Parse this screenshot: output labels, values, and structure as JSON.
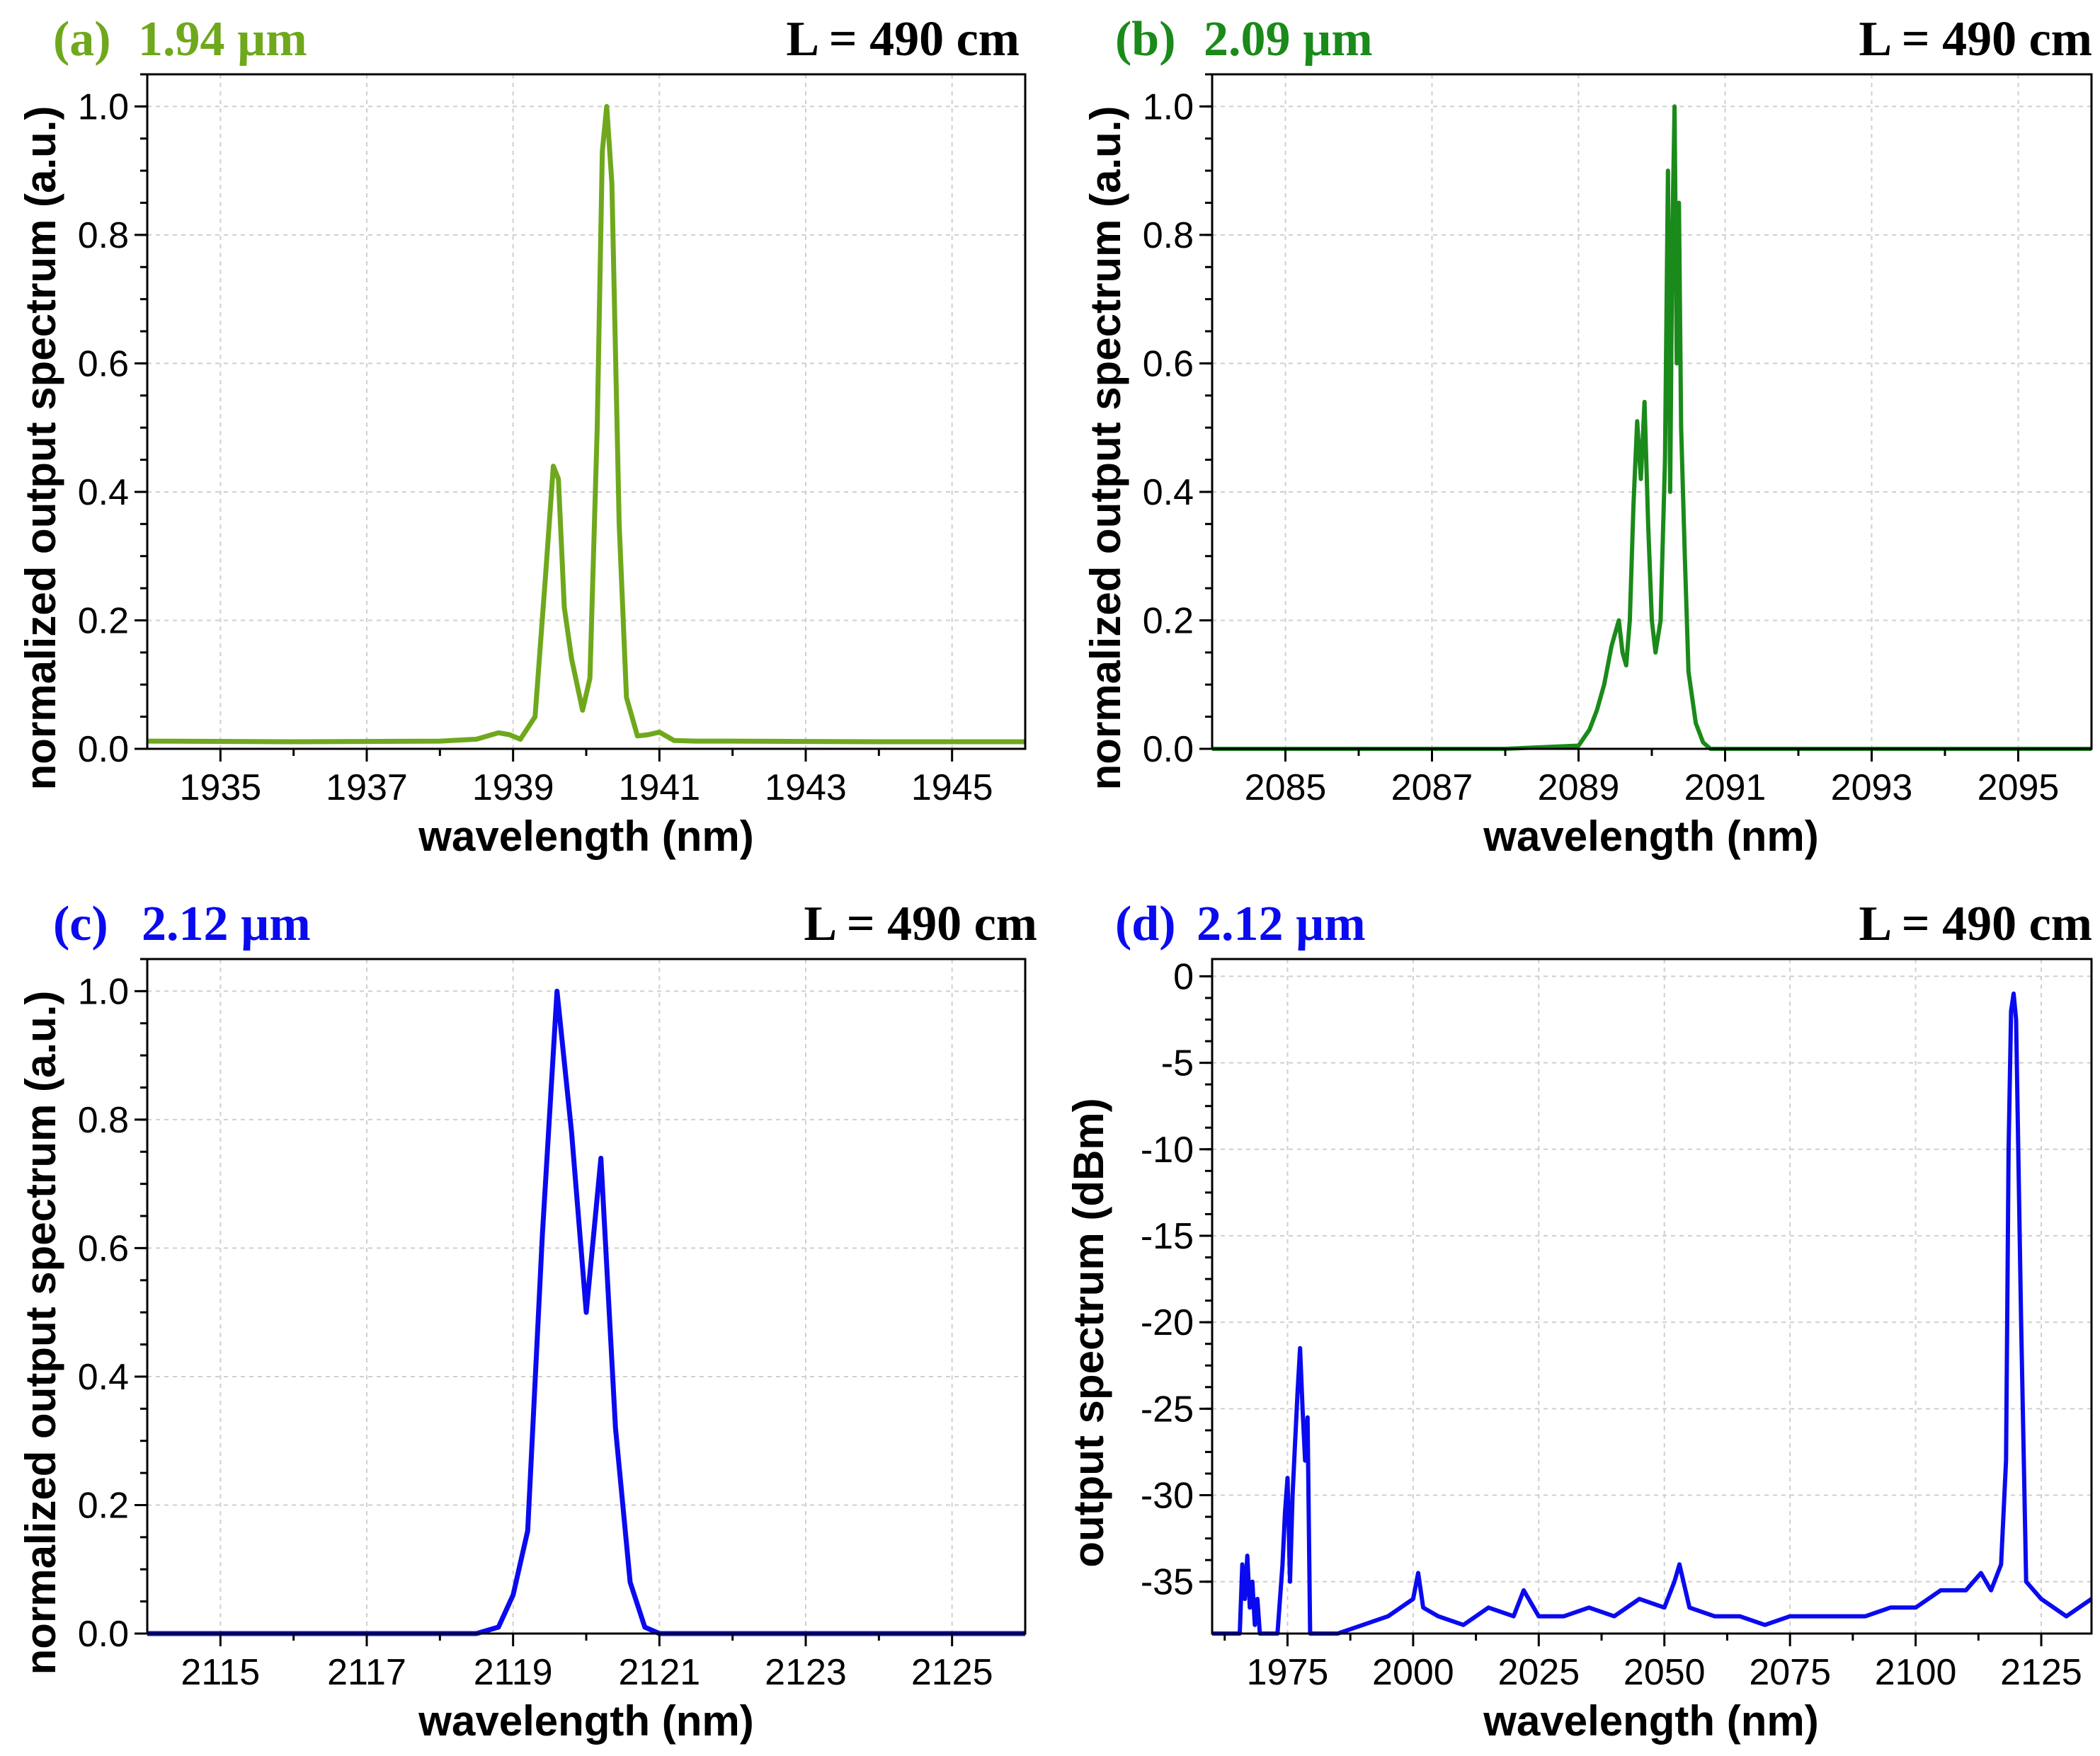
{
  "chart_data": [
    {
      "type": "line",
      "panel": "(a)",
      "title": "1.94 µm",
      "title_color": "#6fa81d",
      "length_label": "L = 490 cm",
      "xlabel": "wavelength (nm)",
      "ylabel": "normalized output spectrum (a.u.)",
      "xlim": [
        1934,
        1946
      ],
      "ylim": [
        0,
        1.05
      ],
      "xticks": [
        1935,
        1937,
        1939,
        1941,
        1943,
        1945
      ],
      "yticks": [
        0.0,
        0.2,
        0.4,
        0.6,
        0.8,
        1.0
      ],
      "ytick_labels": [
        "0.0",
        "0.2",
        "0.4",
        "0.6",
        "0.8",
        "1.0"
      ],
      "grid": true,
      "series": [
        {
          "name": "spectrum",
          "color": "#6fa81d",
          "x": [
            1934,
            1936,
            1938,
            1938.5,
            1938.8,
            1938.95,
            1939.1,
            1939.3,
            1939.45,
            1939.55,
            1939.62,
            1939.7,
            1939.8,
            1939.95,
            1940.05,
            1940.15,
            1940.22,
            1940.28,
            1940.35,
            1940.45,
            1940.55,
            1940.7,
            1940.85,
            1941.0,
            1941.2,
            1941.5,
            1942,
            1944,
            1946
          ],
          "y": [
            0.012,
            0.011,
            0.012,
            0.015,
            0.025,
            0.022,
            0.015,
            0.05,
            0.28,
            0.44,
            0.42,
            0.22,
            0.14,
            0.06,
            0.11,
            0.5,
            0.93,
            1.0,
            0.88,
            0.35,
            0.08,
            0.02,
            0.022,
            0.026,
            0.013,
            0.012,
            0.012,
            0.011,
            0.011
          ]
        }
      ]
    },
    {
      "type": "line",
      "panel": "(b)",
      "title": "2.09 µm",
      "title_color": "#1a8a1a",
      "length_label": "L = 490 cm",
      "xlabel": "wavelength (nm)",
      "ylabel": "normalized output spectrum (a.u.)",
      "xlim": [
        2084,
        2096
      ],
      "ylim": [
        0,
        1.05
      ],
      "xticks": [
        2085,
        2087,
        2089,
        2091,
        2093,
        2095
      ],
      "yticks": [
        0.0,
        0.2,
        0.4,
        0.6,
        0.8,
        1.0
      ],
      "ytick_labels": [
        "0.0",
        "0.2",
        "0.4",
        "0.6",
        "0.8",
        "1.0"
      ],
      "grid": true,
      "series": [
        {
          "name": "spectrum",
          "color": "#1a8a1a",
          "x": [
            2084,
            2088,
            2089.0,
            2089.15,
            2089.25,
            2089.35,
            2089.45,
            2089.55,
            2089.6,
            2089.65,
            2089.7,
            2089.75,
            2089.8,
            2089.85,
            2089.9,
            2089.95,
            2090.0,
            2090.05,
            2090.12,
            2090.18,
            2090.22,
            2090.25,
            2090.28,
            2090.31,
            2090.34,
            2090.37,
            2090.4,
            2090.45,
            2090.5,
            2090.6,
            2090.7,
            2090.8,
            2092,
            2096
          ],
          "y": [
            0.0,
            0.0,
            0.005,
            0.03,
            0.06,
            0.1,
            0.16,
            0.2,
            0.15,
            0.13,
            0.2,
            0.38,
            0.51,
            0.42,
            0.54,
            0.35,
            0.2,
            0.15,
            0.2,
            0.45,
            0.9,
            0.4,
            0.8,
            1.0,
            0.6,
            0.85,
            0.5,
            0.3,
            0.12,
            0.04,
            0.01,
            0.0,
            0.0,
            0.0
          ]
        }
      ]
    },
    {
      "type": "line",
      "panel": "(c)",
      "title": "2.12 µm",
      "title_color": "#0a0af0",
      "length_label": "L = 490 cm",
      "xlabel": "wavelength (nm)",
      "ylabel": "normalized output spectrum (a.u.)",
      "xlim": [
        2114,
        2126
      ],
      "ylim": [
        0,
        1.05
      ],
      "xticks": [
        2115,
        2117,
        2119,
        2121,
        2123,
        2125
      ],
      "yticks": [
        0.0,
        0.2,
        0.4,
        0.6,
        0.8,
        1.0
      ],
      "ytick_labels": [
        "0.0",
        "0.2",
        "0.4",
        "0.6",
        "0.8",
        "1.0"
      ],
      "grid": true,
      "series": [
        {
          "name": "spectrum",
          "color": "#0a0af0",
          "x": [
            2114,
            2118.5,
            2118.8,
            2119.0,
            2119.2,
            2119.4,
            2119.6,
            2119.8,
            2120.0,
            2120.2,
            2120.4,
            2120.6,
            2120.8,
            2121.0,
            2121.3,
            2126
          ],
          "y": [
            0.0,
            0.0,
            0.01,
            0.06,
            0.16,
            0.62,
            1.0,
            0.78,
            0.5,
            0.74,
            0.32,
            0.08,
            0.01,
            0.0,
            0.0,
            0.0
          ]
        }
      ]
    },
    {
      "type": "line",
      "panel": "(d)",
      "title": "2.12 µm",
      "title_color": "#0a0af0",
      "length_label": "L = 490 cm",
      "xlabel": "wavelength (nm)",
      "ylabel": "output spectrum (dBm)",
      "xlim": [
        1960,
        2135
      ],
      "ylim": [
        -38,
        1
      ],
      "xticks": [
        1975,
        2000,
        2025,
        2050,
        2075,
        2100,
        2125
      ],
      "yticks": [
        0,
        -5,
        -10,
        -15,
        -20,
        -25,
        -30,
        -35
      ],
      "ytick_labels": [
        "0",
        "-5",
        "-10",
        "-15",
        "-20",
        "-25",
        "-30",
        "-35"
      ],
      "grid": true,
      "series": [
        {
          "name": "spectrum",
          "color": "#0a0af0",
          "x": [
            1960,
            1965.5,
            1966,
            1966.5,
            1967,
            1967.5,
            1968,
            1968.5,
            1969,
            1969.5,
            1970,
            1970.5,
            1971,
            1973,
            1974,
            1974.5,
            1975,
            1975.5,
            1976,
            1976.5,
            1977,
            1977.5,
            1978,
            1978.5,
            1979,
            1979.5,
            1980,
            1985,
            1990,
            1995,
            2000,
            2001,
            2002,
            2005,
            2010,
            2015,
            2020,
            2022,
            2025,
            2030,
            2035,
            2040,
            2045,
            2050,
            2052,
            2053,
            2055,
            2060,
            2065,
            2070,
            2075,
            2080,
            2085,
            2090,
            2095,
            2100,
            2105,
            2110,
            2113,
            2115,
            2117,
            2118,
            2118.5,
            2119,
            2119.5,
            2120,
            2121,
            2122,
            2125,
            2130,
            2135
          ],
          "y": [
            -38,
            -38,
            -34,
            -36,
            -33.5,
            -36.5,
            -35,
            -37.5,
            -36,
            -38,
            -38,
            -38,
            -38,
            -38,
            -34,
            -31,
            -29,
            -35,
            -30,
            -27,
            -24,
            -21.5,
            -25,
            -28,
            -25.5,
            -38,
            -38,
            -38,
            -37.5,
            -37,
            -36,
            -34.5,
            -36.5,
            -37,
            -37.5,
            -36.5,
            -37,
            -35.5,
            -37,
            -37,
            -36.5,
            -37,
            -36,
            -36.5,
            -35,
            -34,
            -36.5,
            -37,
            -37,
            -37.5,
            -37,
            -37,
            -37,
            -37,
            -36.5,
            -36.5,
            -35.5,
            -35.5,
            -34.5,
            -35.5,
            -34,
            -28,
            -10,
            -2,
            -1,
            -2.5,
            -20,
            -35,
            -36,
            -37,
            -36
          ]
        }
      ]
    }
  ]
}
